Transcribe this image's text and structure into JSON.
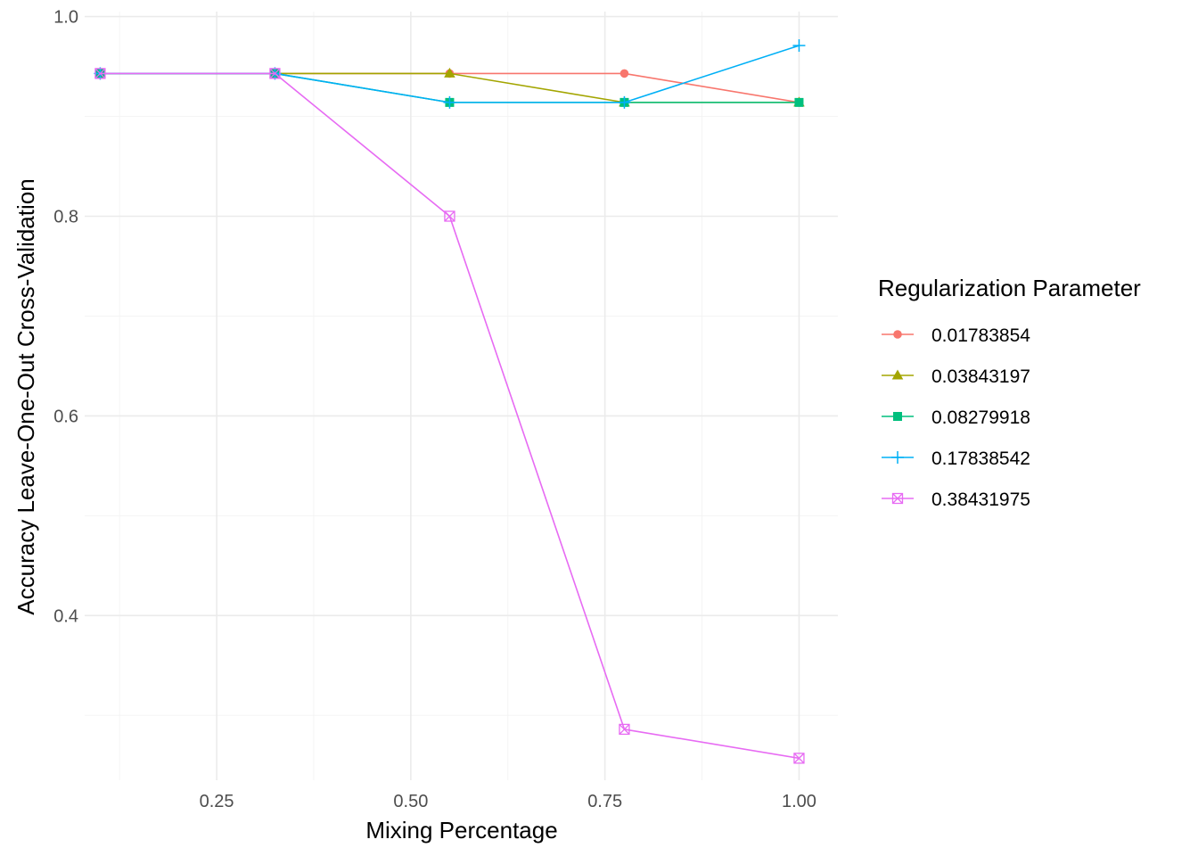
{
  "chart_data": {
    "type": "line",
    "title": "",
    "xlabel": "Mixing Percentage",
    "ylabel": "Accuracy Leave-One-Out Cross-Validation",
    "xlim": [
      0.08,
      1.05
    ],
    "ylim": [
      0.235,
      1.005
    ],
    "x_ticks": [
      {
        "value": 0.25,
        "label": "0.25"
      },
      {
        "value": 0.5,
        "label": "0.50"
      },
      {
        "value": 0.75,
        "label": "0.75"
      },
      {
        "value": 1.0,
        "label": "1.00"
      }
    ],
    "y_ticks": [
      {
        "value": 0.4,
        "label": "0.4"
      },
      {
        "value": 0.6,
        "label": "0.6"
      },
      {
        "value": 0.8,
        "label": "0.8"
      },
      {
        "value": 1.0,
        "label": "1.0"
      }
    ],
    "x_minor": [
      0.125,
      0.375,
      0.625,
      0.875
    ],
    "y_minor": [
      0.3,
      0.5,
      0.7,
      0.9
    ],
    "grid": true,
    "legend": {
      "title": "Regularization Parameter",
      "position": "right"
    },
    "x": [
      0.1,
      0.325,
      0.55,
      0.775,
      1.0
    ],
    "series": [
      {
        "name": "0.01783854",
        "color": "#F8766D",
        "shape": "circle",
        "values": [
          0.943,
          0.943,
          0.943,
          0.943,
          0.914
        ]
      },
      {
        "name": "0.03843197",
        "color": "#A3A500",
        "shape": "triangle",
        "values": [
          0.943,
          0.943,
          0.943,
          0.914,
          0.914
        ]
      },
      {
        "name": "0.08279918",
        "color": "#00BF7D",
        "shape": "square",
        "values": [
          0.943,
          0.943,
          0.914,
          0.914,
          0.914
        ]
      },
      {
        "name": "0.17838542",
        "color": "#00B0F6",
        "shape": "plus",
        "values": [
          0.943,
          0.943,
          0.914,
          0.914,
          0.971
        ]
      },
      {
        "name": "0.38431975",
        "color": "#E76BF3",
        "shape": "square-cross",
        "values": [
          0.943,
          0.943,
          0.8,
          0.286,
          0.257
        ]
      }
    ]
  }
}
